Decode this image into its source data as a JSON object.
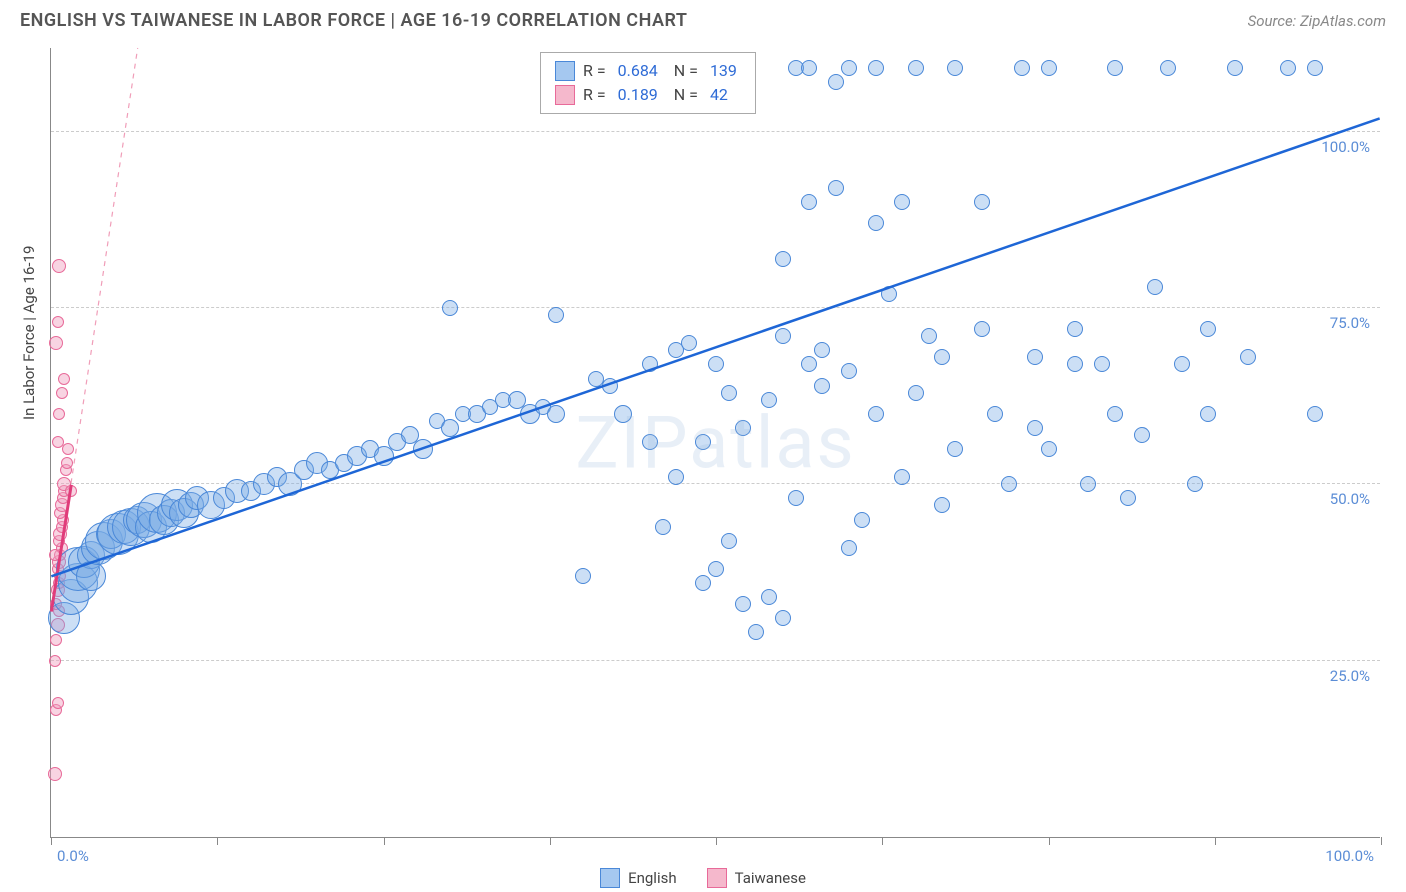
{
  "title": "ENGLISH VS TAIWANESE IN LABOR FORCE | AGE 16-19 CORRELATION CHART",
  "source": "Source: ZipAtlas.com",
  "watermark": "ZIPatlas",
  "chart": {
    "type": "scatter",
    "xlim": [
      0,
      100
    ],
    "ylim": [
      0,
      112
    ],
    "x_ticks": [
      0,
      12.5,
      25,
      37.5,
      50,
      62.5,
      75,
      87.5,
      100
    ],
    "y_gridlines": [
      25,
      50,
      75,
      100
    ],
    "x_label_0": "0.0%",
    "x_label_100": "100.0%",
    "y_labels": {
      "25": "25.0%",
      "50": "50.0%",
      "75": "75.0%",
      "100": "100.0%"
    },
    "ylabel": "In Labor Force | Age 16-19",
    "background_color": "#ffffff",
    "grid_color": "#cccccc",
    "axis_color": "#888888",
    "axis_value_color": "#5b8dd6"
  },
  "legend_top": {
    "r_label": "R =",
    "n_label": "N =",
    "rows": [
      {
        "swatch": "#a5c8f0",
        "border": "#4a88d8",
        "r": "0.684",
        "n": "139"
      },
      {
        "swatch": "#f5b8cc",
        "border": "#e86a99",
        "r": "0.189",
        "n": "42"
      }
    ]
  },
  "legend_bottom": [
    {
      "swatch": "#a5c8f0",
      "border": "#4a88d8",
      "label": "English"
    },
    {
      "swatch": "#f5b8cc",
      "border": "#e86a99",
      "label": "Taiwanese"
    }
  ],
  "series": {
    "english": {
      "fill": "rgba(120,170,230,0.38)",
      "stroke": "#4a88d8",
      "trend": {
        "x1": 0,
        "y1": 37,
        "x2": 100,
        "y2": 102,
        "stroke": "#1e66d6",
        "width": 2.5,
        "dash": ""
      },
      "points": [
        {
          "x": 1,
          "y": 31,
          "r": 16
        },
        {
          "x": 1.5,
          "y": 34,
          "r": 18
        },
        {
          "x": 2,
          "y": 36,
          "r": 20
        },
        {
          "x": 2,
          "y": 38,
          "r": 22
        },
        {
          "x": 2.5,
          "y": 39,
          "r": 16
        },
        {
          "x": 3,
          "y": 40,
          "r": 14
        },
        {
          "x": 3,
          "y": 37,
          "r": 15
        },
        {
          "x": 3.5,
          "y": 41,
          "r": 17
        },
        {
          "x": 4,
          "y": 42,
          "r": 19
        },
        {
          "x": 4.5,
          "y": 43,
          "r": 15
        },
        {
          "x": 5,
          "y": 43,
          "r": 21
        },
        {
          "x": 5.5,
          "y": 44,
          "r": 17
        },
        {
          "x": 6,
          "y": 44,
          "r": 19
        },
        {
          "x": 6.5,
          "y": 45,
          "r": 14
        },
        {
          "x": 7,
          "y": 45,
          "r": 18
        },
        {
          "x": 7.5,
          "y": 44,
          "r": 16
        },
        {
          "x": 8,
          "y": 46,
          "r": 20
        },
        {
          "x": 8.5,
          "y": 45,
          "r": 15
        },
        {
          "x": 9,
          "y": 46,
          "r": 14
        },
        {
          "x": 9.5,
          "y": 47,
          "r": 16
        },
        {
          "x": 10,
          "y": 46,
          "r": 15
        },
        {
          "x": 10.5,
          "y": 47,
          "r": 13
        },
        {
          "x": 11,
          "y": 48,
          "r": 12
        },
        {
          "x": 12,
          "y": 47,
          "r": 14
        },
        {
          "x": 13,
          "y": 48,
          "r": 11
        },
        {
          "x": 14,
          "y": 49,
          "r": 12
        },
        {
          "x": 15,
          "y": 49,
          "r": 10
        },
        {
          "x": 16,
          "y": 50,
          "r": 11
        },
        {
          "x": 17,
          "y": 51,
          "r": 10
        },
        {
          "x": 18,
          "y": 50,
          "r": 12
        },
        {
          "x": 19,
          "y": 52,
          "r": 10
        },
        {
          "x": 20,
          "y": 53,
          "r": 11
        },
        {
          "x": 21,
          "y": 52,
          "r": 9
        },
        {
          "x": 22,
          "y": 53,
          "r": 9
        },
        {
          "x": 23,
          "y": 54,
          "r": 10
        },
        {
          "x": 24,
          "y": 55,
          "r": 9
        },
        {
          "x": 25,
          "y": 54,
          "r": 10
        },
        {
          "x": 26,
          "y": 56,
          "r": 9
        },
        {
          "x": 27,
          "y": 57,
          "r": 9
        },
        {
          "x": 28,
          "y": 55,
          "r": 10
        },
        {
          "x": 29,
          "y": 59,
          "r": 8
        },
        {
          "x": 30,
          "y": 58,
          "r": 9
        },
        {
          "x": 31,
          "y": 60,
          "r": 8
        },
        {
          "x": 32,
          "y": 60,
          "r": 9
        },
        {
          "x": 33,
          "y": 61,
          "r": 8
        },
        {
          "x": 34,
          "y": 62,
          "r": 8
        },
        {
          "x": 35,
          "y": 62,
          "r": 9
        },
        {
          "x": 36,
          "y": 60,
          "r": 10
        },
        {
          "x": 37,
          "y": 61,
          "r": 8
        },
        {
          "x": 38,
          "y": 60,
          "r": 9
        },
        {
          "x": 30,
          "y": 75,
          "r": 8
        },
        {
          "x": 38,
          "y": 74,
          "r": 8
        },
        {
          "x": 40,
          "y": 37,
          "r": 8
        },
        {
          "x": 41,
          "y": 65,
          "r": 8
        },
        {
          "x": 42,
          "y": 64,
          "r": 8
        },
        {
          "x": 43,
          "y": 60,
          "r": 9
        },
        {
          "x": 45,
          "y": 67,
          "r": 8
        },
        {
          "x": 45,
          "y": 56,
          "r": 8
        },
        {
          "x": 46,
          "y": 44,
          "r": 8
        },
        {
          "x": 47,
          "y": 69,
          "r": 8
        },
        {
          "x": 47,
          "y": 51,
          "r": 8
        },
        {
          "x": 48,
          "y": 70,
          "r": 8
        },
        {
          "x": 49,
          "y": 36,
          "r": 8
        },
        {
          "x": 49,
          "y": 56,
          "r": 8
        },
        {
          "x": 50,
          "y": 38,
          "r": 8
        },
        {
          "x": 50,
          "y": 67,
          "r": 8
        },
        {
          "x": 51,
          "y": 63,
          "r": 8
        },
        {
          "x": 51,
          "y": 42,
          "r": 8
        },
        {
          "x": 52,
          "y": 33,
          "r": 8
        },
        {
          "x": 52,
          "y": 58,
          "r": 8
        },
        {
          "x": 53,
          "y": 29,
          "r": 8
        },
        {
          "x": 54,
          "y": 62,
          "r": 8
        },
        {
          "x": 54,
          "y": 34,
          "r": 8
        },
        {
          "x": 55,
          "y": 31,
          "r": 8
        },
        {
          "x": 55,
          "y": 71,
          "r": 8
        },
        {
          "x": 56,
          "y": 109,
          "r": 8
        },
        {
          "x": 57,
          "y": 109,
          "r": 8
        },
        {
          "x": 55,
          "y": 82,
          "r": 8
        },
        {
          "x": 56,
          "y": 48,
          "r": 8
        },
        {
          "x": 57,
          "y": 67,
          "r": 8
        },
        {
          "x": 57,
          "y": 90,
          "r": 8
        },
        {
          "x": 58,
          "y": 69,
          "r": 8
        },
        {
          "x": 58,
          "y": 64,
          "r": 8
        },
        {
          "x": 59,
          "y": 107,
          "r": 8
        },
        {
          "x": 59,
          "y": 92,
          "r": 8
        },
        {
          "x": 60,
          "y": 41,
          "r": 8
        },
        {
          "x": 60,
          "y": 66,
          "r": 8
        },
        {
          "x": 60,
          "y": 109,
          "r": 8
        },
        {
          "x": 61,
          "y": 45,
          "r": 8
        },
        {
          "x": 62,
          "y": 87,
          "r": 8
        },
        {
          "x": 62,
          "y": 109,
          "r": 8
        },
        {
          "x": 62,
          "y": 60,
          "r": 8
        },
        {
          "x": 63,
          "y": 77,
          "r": 8
        },
        {
          "x": 64,
          "y": 51,
          "r": 8
        },
        {
          "x": 64,
          "y": 90,
          "r": 8
        },
        {
          "x": 65,
          "y": 63,
          "r": 8
        },
        {
          "x": 65,
          "y": 109,
          "r": 8
        },
        {
          "x": 66,
          "y": 71,
          "r": 8
        },
        {
          "x": 67,
          "y": 47,
          "r": 8
        },
        {
          "x": 67,
          "y": 68,
          "r": 8
        },
        {
          "x": 68,
          "y": 55,
          "r": 8
        },
        {
          "x": 68,
          "y": 109,
          "r": 8
        },
        {
          "x": 70,
          "y": 72,
          "r": 8
        },
        {
          "x": 70,
          "y": 90,
          "r": 8
        },
        {
          "x": 71,
          "y": 60,
          "r": 8
        },
        {
          "x": 72,
          "y": 50,
          "r": 8
        },
        {
          "x": 73,
          "y": 109,
          "r": 8
        },
        {
          "x": 74,
          "y": 58,
          "r": 8
        },
        {
          "x": 74,
          "y": 68,
          "r": 8
        },
        {
          "x": 75,
          "y": 109,
          "r": 8
        },
        {
          "x": 75,
          "y": 55,
          "r": 8
        },
        {
          "x": 77,
          "y": 67,
          "r": 8
        },
        {
          "x": 77,
          "y": 72,
          "r": 8
        },
        {
          "x": 78,
          "y": 50,
          "r": 8
        },
        {
          "x": 79,
          "y": 67,
          "r": 8
        },
        {
          "x": 80,
          "y": 60,
          "r": 8
        },
        {
          "x": 80,
          "y": 109,
          "r": 8
        },
        {
          "x": 81,
          "y": 48,
          "r": 8
        },
        {
          "x": 82,
          "y": 57,
          "r": 8
        },
        {
          "x": 83,
          "y": 78,
          "r": 8
        },
        {
          "x": 84,
          "y": 109,
          "r": 8
        },
        {
          "x": 85,
          "y": 67,
          "r": 8
        },
        {
          "x": 86,
          "y": 50,
          "r": 8
        },
        {
          "x": 87,
          "y": 72,
          "r": 8
        },
        {
          "x": 87,
          "y": 60,
          "r": 8
        },
        {
          "x": 89,
          "y": 109,
          "r": 8
        },
        {
          "x": 90,
          "y": 68,
          "r": 8
        },
        {
          "x": 93,
          "y": 109,
          "r": 8
        },
        {
          "x": 95,
          "y": 60,
          "r": 8
        },
        {
          "x": 95,
          "y": 109,
          "r": 8
        }
      ]
    },
    "taiwanese": {
      "fill": "rgba(240,160,190,0.45)",
      "stroke": "#e86a99",
      "trend_solid": {
        "x1": 0,
        "y1": 32,
        "x2": 1.5,
        "y2": 50,
        "stroke": "#e03c7a",
        "width": 3,
        "dash": ""
      },
      "trend_dash": {
        "x1": 0,
        "y1": 32,
        "x2": 6.5,
        "y2": 112,
        "stroke": "#f09db8",
        "width": 1.2,
        "dash": "5,5"
      },
      "points": [
        {
          "x": 0.3,
          "y": 9,
          "r": 7
        },
        {
          "x": 0.4,
          "y": 18,
          "r": 6
        },
        {
          "x": 0.5,
          "y": 19,
          "r": 6
        },
        {
          "x": 0.3,
          "y": 25,
          "r": 6
        },
        {
          "x": 0.4,
          "y": 28,
          "r": 6
        },
        {
          "x": 0.5,
          "y": 30,
          "r": 7
        },
        {
          "x": 0.6,
          "y": 32,
          "r": 6
        },
        {
          "x": 0.4,
          "y": 33,
          "r": 6
        },
        {
          "x": 0.5,
          "y": 35,
          "r": 7
        },
        {
          "x": 0.6,
          "y": 36,
          "r": 6
        },
        {
          "x": 0.7,
          "y": 37,
          "r": 6
        },
        {
          "x": 0.5,
          "y": 38,
          "r": 6
        },
        {
          "x": 0.6,
          "y": 39,
          "r": 7
        },
        {
          "x": 0.7,
          "y": 40,
          "r": 6
        },
        {
          "x": 0.8,
          "y": 41,
          "r": 6
        },
        {
          "x": 0.6,
          "y": 42,
          "r": 6
        },
        {
          "x": 0.7,
          "y": 43,
          "r": 7
        },
        {
          "x": 0.8,
          "y": 44,
          "r": 6
        },
        {
          "x": 0.9,
          "y": 45,
          "r": 6
        },
        {
          "x": 0.7,
          "y": 46,
          "r": 6
        },
        {
          "x": 0.8,
          "y": 47,
          "r": 7
        },
        {
          "x": 0.9,
          "y": 48,
          "r": 6
        },
        {
          "x": 1.0,
          "y": 49,
          "r": 6
        },
        {
          "x": 1.0,
          "y": 50,
          "r": 7
        },
        {
          "x": 1.1,
          "y": 52,
          "r": 6
        },
        {
          "x": 1.2,
          "y": 53,
          "r": 6
        },
        {
          "x": 0.5,
          "y": 56,
          "r": 6
        },
        {
          "x": 0.6,
          "y": 60,
          "r": 6
        },
        {
          "x": 0.8,
          "y": 63,
          "r": 6
        },
        {
          "x": 1.0,
          "y": 65,
          "r": 6
        },
        {
          "x": 0.4,
          "y": 70,
          "r": 7
        },
        {
          "x": 0.5,
          "y": 73,
          "r": 6
        },
        {
          "x": 0.6,
          "y": 81,
          "r": 7
        },
        {
          "x": 1.3,
          "y": 55,
          "r": 6
        },
        {
          "x": 1.5,
          "y": 49,
          "r": 6
        },
        {
          "x": 0.3,
          "y": 40,
          "r": 6
        }
      ]
    }
  }
}
